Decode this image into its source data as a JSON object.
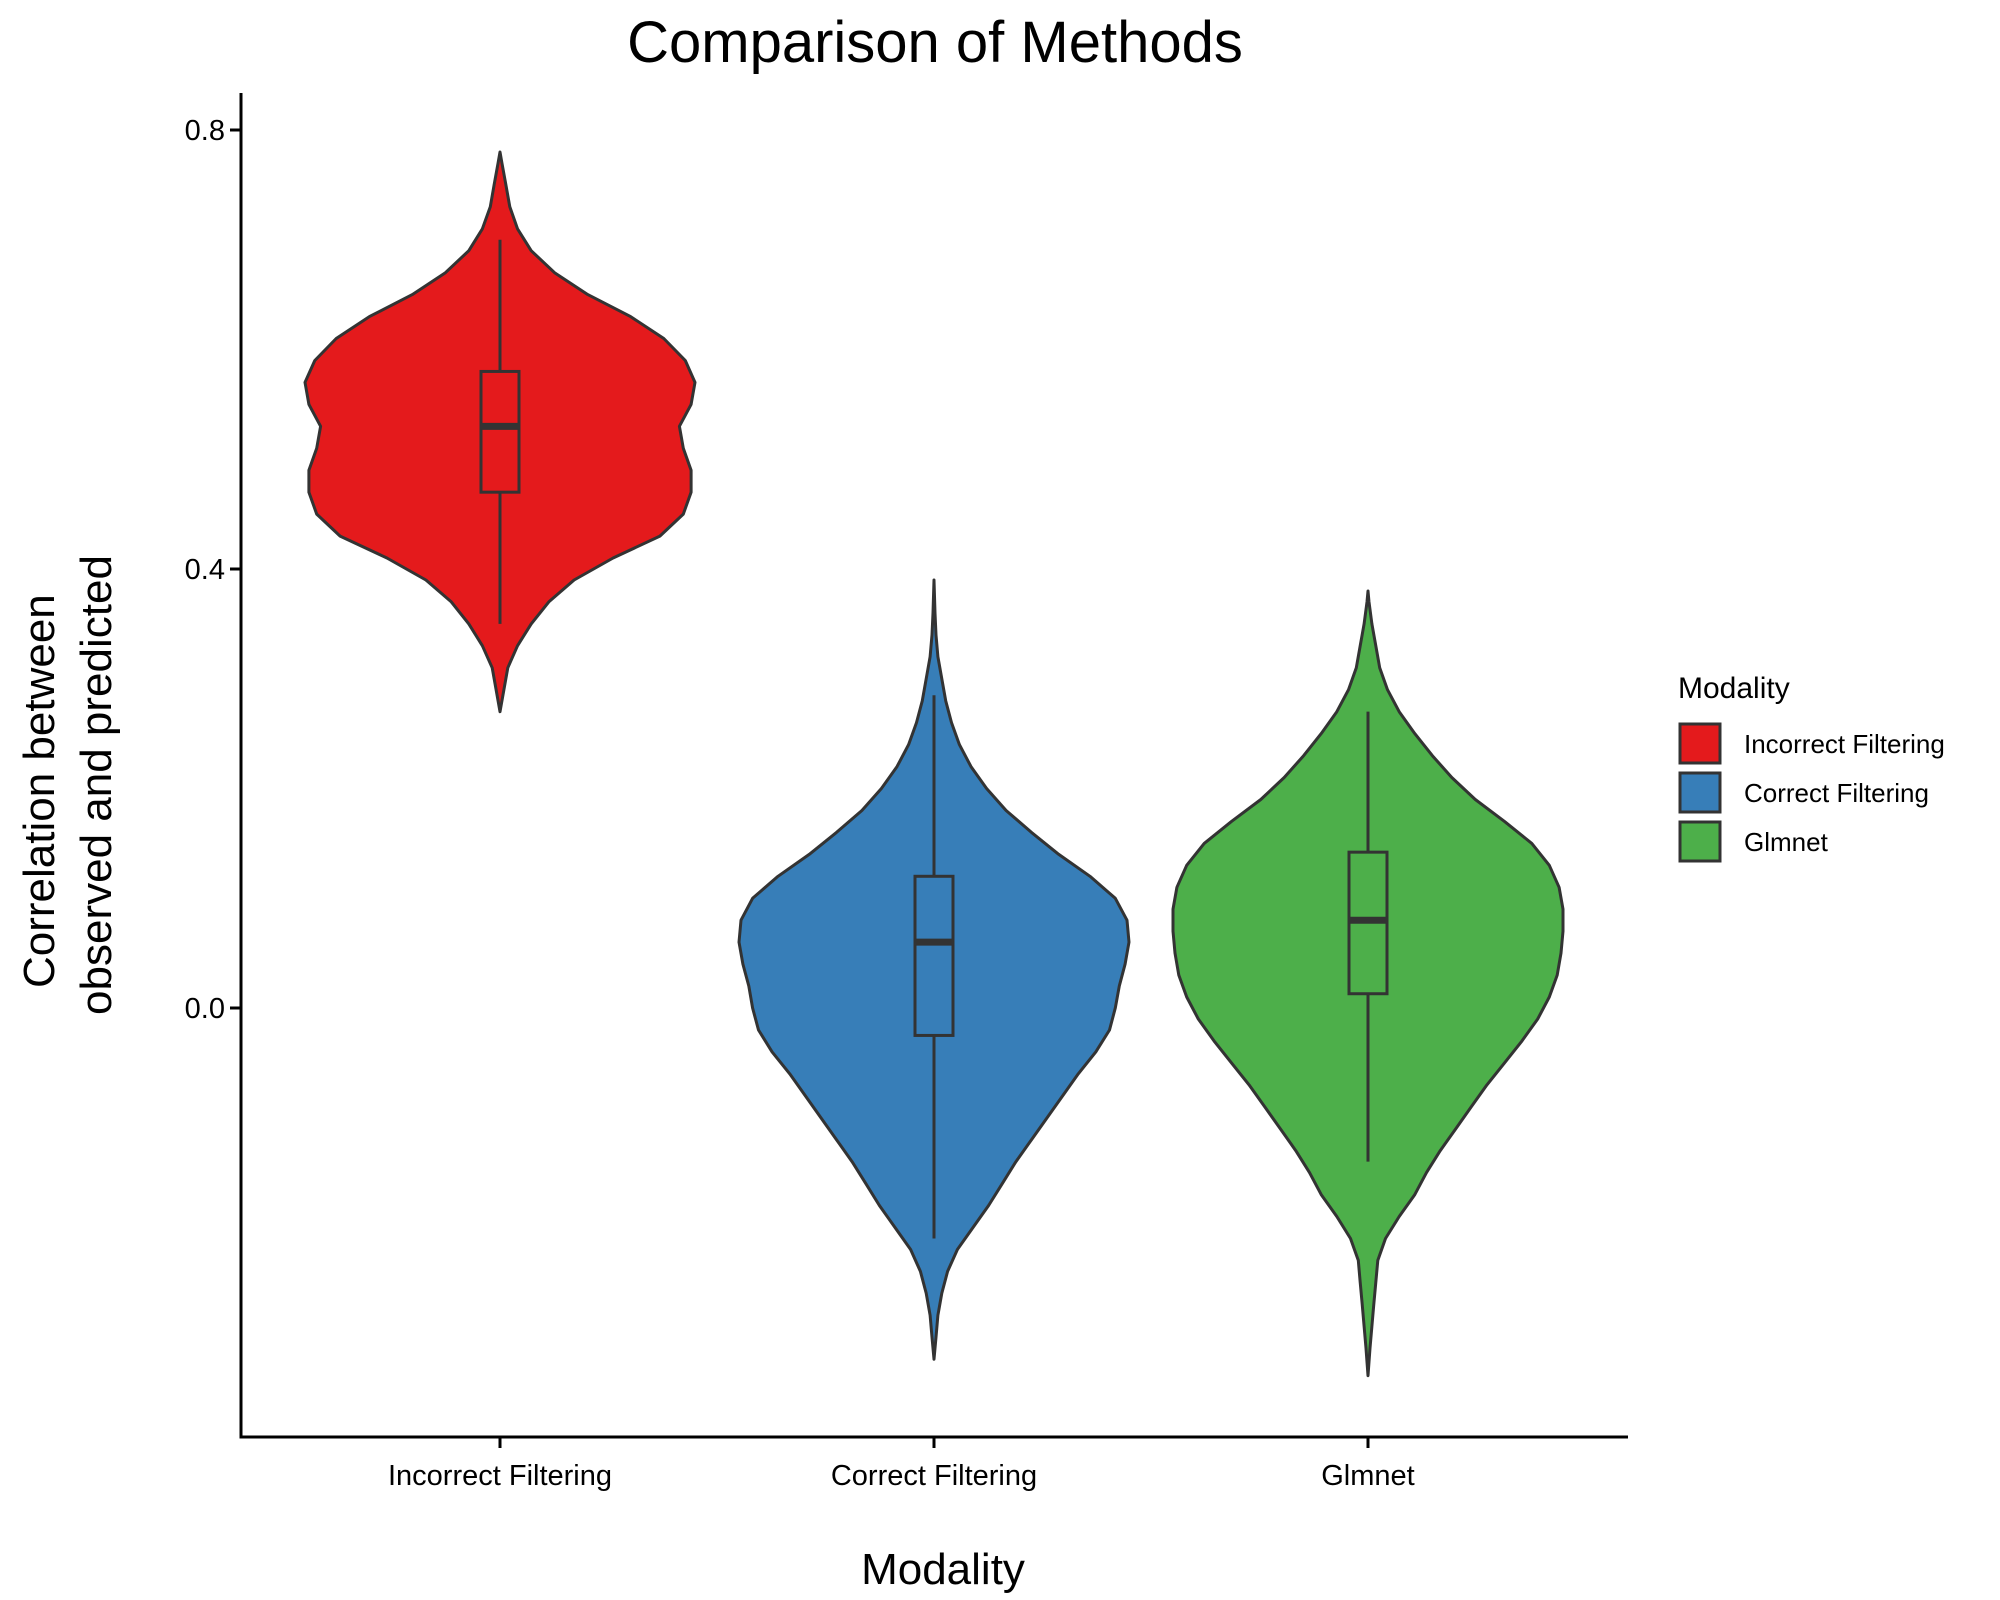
{
  "chart_data": {
    "type": "violin",
    "title": "Comparison of Methods",
    "xlabel": "Modality",
    "ylabel": [
      "Correlation between",
      "observed and predicted"
    ],
    "ylim": [
      -0.37,
      0.8
    ],
    "yticks": [
      0.0,
      0.4,
      0.8
    ],
    "ytick_labels": [
      "0.0",
      "0.4",
      "0.8"
    ],
    "categories": [
      "Incorrect Filtering",
      "Correct Filtering",
      "Glmnet"
    ],
    "grid": false,
    "legend": {
      "title": "Modality",
      "position": "right",
      "entries": [
        "Incorrect Filtering",
        "Correct Filtering",
        "Glmnet"
      ]
    },
    "series": [
      {
        "name": "Incorrect Filtering",
        "color": "#E41A1C",
        "box": {
          "lower_whisker": 0.35,
          "q1": 0.47,
          "median": 0.53,
          "q3": 0.58,
          "upper_whisker": 0.7
        },
        "density": [
          [
            0.27,
            0.0
          ],
          [
            0.29,
            0.02
          ],
          [
            0.31,
            0.04
          ],
          [
            0.33,
            0.09
          ],
          [
            0.35,
            0.16
          ],
          [
            0.37,
            0.25
          ],
          [
            0.39,
            0.38
          ],
          [
            0.41,
            0.58
          ],
          [
            0.43,
            0.82
          ],
          [
            0.45,
            0.94
          ],
          [
            0.47,
            0.98
          ],
          [
            0.49,
            0.98
          ],
          [
            0.51,
            0.94
          ],
          [
            0.53,
            0.92
          ],
          [
            0.55,
            0.98
          ],
          [
            0.57,
            1.0
          ],
          [
            0.59,
            0.95
          ],
          [
            0.61,
            0.84
          ],
          [
            0.63,
            0.67
          ],
          [
            0.65,
            0.45
          ],
          [
            0.67,
            0.28
          ],
          [
            0.69,
            0.16
          ],
          [
            0.71,
            0.09
          ],
          [
            0.73,
            0.05
          ],
          [
            0.75,
            0.03
          ],
          [
            0.77,
            0.01
          ],
          [
            0.78,
            0.0
          ]
        ]
      },
      {
        "name": "Correct Filtering",
        "color": "#377EB8",
        "box": {
          "lower_whisker": -0.21,
          "q1": -0.025,
          "median": 0.06,
          "q3": 0.12,
          "upper_whisker": 0.285
        },
        "density": [
          [
            -0.32,
            0.0
          ],
          [
            -0.3,
            0.01
          ],
          [
            -0.28,
            0.02
          ],
          [
            -0.26,
            0.04
          ],
          [
            -0.24,
            0.07
          ],
          [
            -0.22,
            0.12
          ],
          [
            -0.2,
            0.2
          ],
          [
            -0.18,
            0.28
          ],
          [
            -0.16,
            0.35
          ],
          [
            -0.14,
            0.42
          ],
          [
            -0.12,
            0.5
          ],
          [
            -0.1,
            0.58
          ],
          [
            -0.08,
            0.66
          ],
          [
            -0.06,
            0.74
          ],
          [
            -0.04,
            0.83
          ],
          [
            -0.02,
            0.9
          ],
          [
            0.0,
            0.93
          ],
          [
            0.02,
            0.95
          ],
          [
            0.04,
            0.98
          ],
          [
            0.06,
            1.0
          ],
          [
            0.08,
            0.99
          ],
          [
            0.1,
            0.93
          ],
          [
            0.12,
            0.8
          ],
          [
            0.14,
            0.64
          ],
          [
            0.16,
            0.5
          ],
          [
            0.18,
            0.37
          ],
          [
            0.2,
            0.27
          ],
          [
            0.22,
            0.19
          ],
          [
            0.24,
            0.13
          ],
          [
            0.26,
            0.09
          ],
          [
            0.28,
            0.06
          ],
          [
            0.3,
            0.04
          ],
          [
            0.32,
            0.02
          ],
          [
            0.34,
            0.01
          ],
          [
            0.36,
            0.005
          ],
          [
            0.39,
            0.0
          ]
        ]
      },
      {
        "name": "Glmnet",
        "color": "#4DAF4A",
        "box": {
          "lower_whisker": -0.14,
          "q1": 0.013,
          "median": 0.08,
          "q3": 0.142,
          "upper_whisker": 0.27
        },
        "density": [
          [
            -0.335,
            0.0
          ],
          [
            -0.31,
            0.01
          ],
          [
            -0.29,
            0.02
          ],
          [
            -0.27,
            0.03
          ],
          [
            -0.25,
            0.04
          ],
          [
            -0.23,
            0.05
          ],
          [
            -0.21,
            0.09
          ],
          [
            -0.19,
            0.16
          ],
          [
            -0.17,
            0.24
          ],
          [
            -0.15,
            0.3
          ],
          [
            -0.13,
            0.37
          ],
          [
            -0.11,
            0.45
          ],
          [
            -0.09,
            0.53
          ],
          [
            -0.07,
            0.61
          ],
          [
            -0.05,
            0.7
          ],
          [
            -0.03,
            0.79
          ],
          [
            -0.01,
            0.87
          ],
          [
            0.01,
            0.93
          ],
          [
            0.03,
            0.97
          ],
          [
            0.05,
            0.99
          ],
          [
            0.07,
            1.0
          ],
          [
            0.09,
            1.0
          ],
          [
            0.11,
            0.98
          ],
          [
            0.13,
            0.93
          ],
          [
            0.15,
            0.84
          ],
          [
            0.17,
            0.7
          ],
          [
            0.19,
            0.55
          ],
          [
            0.21,
            0.43
          ],
          [
            0.23,
            0.33
          ],
          [
            0.25,
            0.24
          ],
          [
            0.27,
            0.16
          ],
          [
            0.29,
            0.1
          ],
          [
            0.31,
            0.06
          ],
          [
            0.33,
            0.04
          ],
          [
            0.35,
            0.02
          ],
          [
            0.37,
            0.005
          ],
          [
            0.38,
            0.0
          ]
        ]
      }
    ]
  }
}
